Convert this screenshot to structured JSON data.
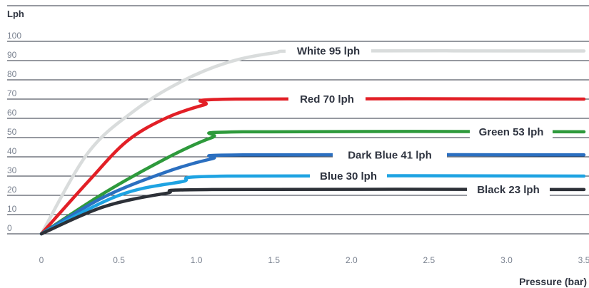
{
  "chart_data": {
    "type": "line",
    "title": "",
    "xlabel": "Pressure (bar)",
    "ylabel": "Lph",
    "xlim": [
      0,
      3.5
    ],
    "ylim": [
      0,
      100
    ],
    "grid": true,
    "x_ticks": [
      "0",
      "0.5",
      "1.0",
      "1.5",
      "2.0",
      "2.5",
      "3.0",
      "3.5"
    ],
    "y_ticks": [
      "0",
      "10",
      "20",
      "30",
      "40",
      "50",
      "60",
      "70",
      "80",
      "90",
      "100"
    ],
    "legend": "inline labels",
    "series": [
      {
        "name": "White 95 lph",
        "color": "#d9dcdc",
        "x": [
          0,
          0.3,
          0.6,
          0.9,
          1.2,
          1.5,
          1.75,
          3.5
        ],
        "y": [
          0,
          42,
          64,
          79,
          89,
          94,
          95,
          95
        ]
      },
      {
        "name": "Red 70 lph",
        "color": "#e21f26",
        "x": [
          0,
          0.3,
          0.55,
          0.8,
          1.05,
          1.25,
          3.5
        ],
        "y": [
          0,
          27,
          48,
          60,
          67,
          70,
          70
        ]
      },
      {
        "name": "Green 53 lph",
        "color": "#2e9a3c",
        "x": [
          0,
          0.4,
          0.8,
          1.1,
          1.3,
          3.5
        ],
        "y": [
          0,
          21,
          39,
          50,
          53,
          53
        ]
      },
      {
        "name": "Dark Blue 41 lph",
        "color": "#2b6fc0",
        "x": [
          0,
          0.4,
          0.8,
          1.1,
          1.3,
          3.5
        ],
        "y": [
          0,
          19,
          32,
          39,
          41,
          41
        ]
      },
      {
        "name": "Blue 30 lph",
        "color": "#1ea3e2",
        "x": [
          0,
          0.5,
          0.9,
          1.2,
          3.5
        ],
        "y": [
          0,
          20,
          27,
          30,
          30
        ]
      },
      {
        "name": "Black 23 lph",
        "color": "#2d3138",
        "x": [
          0,
          0.4,
          0.8,
          1.1,
          3.5
        ],
        "y": [
          0,
          14,
          21,
          23,
          23
        ]
      }
    ]
  }
}
